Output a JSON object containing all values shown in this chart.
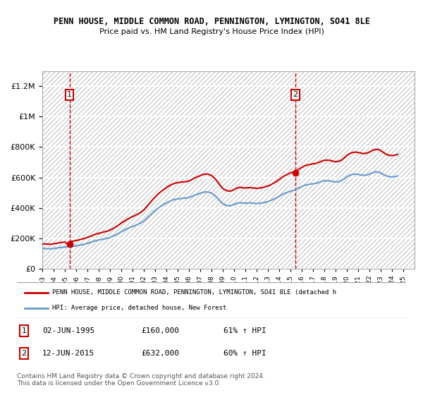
{
  "title": "PENN HOUSE, MIDDLE COMMON ROAD, PENNINGTON, LYMINGTON, SO41 8LE",
  "subtitle": "Price paid vs. HM Land Registry's House Price Index (HPI)",
  "xlabel": "",
  "ylabel": "",
  "ylim": [
    0,
    1300000
  ],
  "xlim_start": 1993,
  "xlim_end": 2026,
  "yticks": [
    0,
    200000,
    400000,
    600000,
    800000,
    1000000,
    1200000
  ],
  "ytick_labels": [
    "£0",
    "£200K",
    "£400K",
    "£600K",
    "£800K",
    "£1M",
    "£1.2M"
  ],
  "xticks": [
    1993,
    1994,
    1995,
    1996,
    1997,
    1998,
    1999,
    2000,
    2001,
    2002,
    2003,
    2004,
    2005,
    2006,
    2007,
    2008,
    2009,
    2010,
    2011,
    2012,
    2013,
    2014,
    2015,
    2016,
    2017,
    2018,
    2019,
    2020,
    2021,
    2022,
    2023,
    2024,
    2025
  ],
  "background_color": "#ffffff",
  "plot_bg_color": "#f5f5f5",
  "hatch_color": "#dddddd",
  "grid_color": "#ffffff",
  "red_line_color": "#cc0000",
  "blue_line_color": "#6699cc",
  "sale1_date": 1995.42,
  "sale1_price": 160000,
  "sale2_date": 2015.44,
  "sale2_price": 632000,
  "legend_label_red": "PENN HOUSE, MIDDLE COMMON ROAD, PENNINGTON, LYMINGTON, SO41 8LE (detached h",
  "legend_label_blue": "HPI: Average price, detached house, New Forest",
  "footnote": "Contains HM Land Registry data © Crown copyright and database right 2024.\nThis data is licensed under the Open Government Licence v3.0.",
  "table_row1": "1    02-JUN-1995    £160,000    61% ↑ HPI",
  "table_row2": "2    12-JUN-2015    £632,000    60% ↑ HPI",
  "hpi_data_x": [
    1993.0,
    1993.25,
    1993.5,
    1993.75,
    1994.0,
    1994.25,
    1994.5,
    1994.75,
    1995.0,
    1995.25,
    1995.5,
    1995.75,
    1996.0,
    1996.25,
    1996.5,
    1996.75,
    1997.0,
    1997.25,
    1997.5,
    1997.75,
    1998.0,
    1998.25,
    1998.5,
    1998.75,
    1999.0,
    1999.25,
    1999.5,
    1999.75,
    2000.0,
    2000.25,
    2000.5,
    2000.75,
    2001.0,
    2001.25,
    2001.5,
    2001.75,
    2002.0,
    2002.25,
    2002.5,
    2002.75,
    2003.0,
    2003.25,
    2003.5,
    2003.75,
    2004.0,
    2004.25,
    2004.5,
    2004.75,
    2005.0,
    2005.25,
    2005.5,
    2005.75,
    2006.0,
    2006.25,
    2006.5,
    2006.75,
    2007.0,
    2007.25,
    2007.5,
    2007.75,
    2008.0,
    2008.25,
    2008.5,
    2008.75,
    2009.0,
    2009.25,
    2009.5,
    2009.75,
    2010.0,
    2010.25,
    2010.5,
    2010.75,
    2011.0,
    2011.25,
    2011.5,
    2011.75,
    2012.0,
    2012.25,
    2012.5,
    2012.75,
    2013.0,
    2013.25,
    2013.5,
    2013.75,
    2014.0,
    2014.25,
    2014.5,
    2014.75,
    2015.0,
    2015.25,
    2015.5,
    2015.75,
    2016.0,
    2016.25,
    2016.5,
    2016.75,
    2017.0,
    2017.25,
    2017.5,
    2017.75,
    2018.0,
    2018.25,
    2018.5,
    2018.75,
    2019.0,
    2019.25,
    2019.5,
    2019.75,
    2020.0,
    2020.25,
    2020.5,
    2020.75,
    2021.0,
    2021.25,
    2021.5,
    2021.75,
    2022.0,
    2022.25,
    2022.5,
    2022.75,
    2023.0,
    2023.25,
    2023.5,
    2023.75,
    2024.0,
    2024.25,
    2024.5
  ],
  "hpi_data_y": [
    130000,
    132000,
    131000,
    130000,
    132000,
    135000,
    138000,
    140000,
    142000,
    143000,
    145000,
    147000,
    150000,
    153000,
    157000,
    161000,
    166000,
    172000,
    178000,
    184000,
    188000,
    192000,
    196000,
    199000,
    205000,
    213000,
    222000,
    232000,
    242000,
    252000,
    262000,
    270000,
    277000,
    284000,
    292000,
    301000,
    313000,
    330000,
    348000,
    366000,
    382000,
    397000,
    410000,
    421000,
    432000,
    442000,
    450000,
    455000,
    459000,
    461000,
    463000,
    464000,
    468000,
    475000,
    483000,
    490000,
    496000,
    502000,
    505000,
    503000,
    497000,
    484000,
    466000,
    445000,
    428000,
    418000,
    413000,
    415000,
    422000,
    430000,
    434000,
    432000,
    430000,
    432000,
    432000,
    430000,
    428000,
    430000,
    432000,
    436000,
    441000,
    448000,
    456000,
    465000,
    476000,
    487000,
    496000,
    503000,
    508000,
    514000,
    522000,
    531000,
    540000,
    548000,
    553000,
    556000,
    558000,
    561000,
    567000,
    573000,
    578000,
    579000,
    577000,
    573000,
    570000,
    572000,
    578000,
    590000,
    604000,
    614000,
    620000,
    622000,
    620000,
    616000,
    614000,
    616000,
    622000,
    630000,
    636000,
    636000,
    630000,
    619000,
    610000,
    605000,
    603000,
    605000,
    610000
  ],
  "price_data_x": [
    1993.0,
    1993.25,
    1993.5,
    1993.75,
    1994.0,
    1994.25,
    1994.5,
    1994.75,
    1995.0,
    1995.25,
    1995.5,
    1995.75,
    1996.0,
    1996.25,
    1996.5,
    1996.75,
    1997.0,
    1997.25,
    1997.5,
    1997.75,
    1998.0,
    1998.25,
    1998.5,
    1998.75,
    1999.0,
    1999.25,
    1999.5,
    1999.75,
    2000.0,
    2000.25,
    2000.5,
    2000.75,
    2001.0,
    2001.25,
    2001.5,
    2001.75,
    2002.0,
    2002.25,
    2002.5,
    2002.75,
    2003.0,
    2003.25,
    2003.5,
    2003.75,
    2004.0,
    2004.25,
    2004.5,
    2004.75,
    2005.0,
    2005.25,
    2005.5,
    2005.75,
    2006.0,
    2006.25,
    2006.5,
    2006.75,
    2007.0,
    2007.25,
    2007.5,
    2007.75,
    2008.0,
    2008.25,
    2008.5,
    2008.75,
    2009.0,
    2009.25,
    2009.5,
    2009.75,
    2010.0,
    2010.25,
    2010.5,
    2010.75,
    2011.0,
    2011.25,
    2011.5,
    2011.75,
    2012.0,
    2012.25,
    2012.5,
    2012.75,
    2013.0,
    2013.25,
    2013.5,
    2013.75,
    2014.0,
    2014.25,
    2014.5,
    2014.75,
    2015.0,
    2015.25,
    2015.5,
    2015.75,
    2016.0,
    2016.25,
    2016.5,
    2016.75,
    2017.0,
    2017.25,
    2017.5,
    2017.75,
    2018.0,
    2018.25,
    2018.5,
    2018.75,
    2019.0,
    2019.25,
    2019.5,
    2019.75,
    2020.0,
    2020.25,
    2020.5,
    2020.75,
    2021.0,
    2021.25,
    2021.5,
    2021.75,
    2022.0,
    2022.25,
    2022.5,
    2022.75,
    2023.0,
    2023.25,
    2023.5,
    2023.75,
    2024.0,
    2024.25,
    2024.5
  ],
  "price_data_y": [
    160000,
    163000,
    161000,
    160000,
    163000,
    167000,
    170000,
    173000,
    175000,
    160000,
    179000,
    181000,
    185000,
    189000,
    194000,
    199000,
    205000,
    212000,
    220000,
    227000,
    232000,
    237000,
    242000,
    246000,
    253000,
    263000,
    274000,
    286000,
    299000,
    311000,
    323000,
    333000,
    342000,
    351000,
    360000,
    371000,
    386000,
    407000,
    429000,
    451000,
    471000,
    490000,
    506000,
    519000,
    533000,
    545000,
    555000,
    561000,
    566000,
    568000,
    571000,
    572000,
    577000,
    586000,
    596000,
    604000,
    612000,
    619000,
    623000,
    620000,
    612000,
    597000,
    575000,
    549000,
    528000,
    516000,
    510000,
    512000,
    520000,
    530000,
    535000,
    533000,
    530000,
    533000,
    533000,
    530000,
    528000,
    530000,
    533000,
    538000,
    544000,
    552000,
    562000,
    573000,
    587000,
    601000,
    612000,
    620000,
    632000,
    634000,
    643000,
    655000,
    666000,
    676000,
    682000,
    686000,
    690000,
    692000,
    699000,
    707000,
    713000,
    714000,
    712000,
    707000,
    703000,
    706000,
    713000,
    728000,
    745000,
    757000,
    764000,
    767000,
    764000,
    760000,
    757000,
    760000,
    767000,
    777000,
    784000,
    785000,
    777000,
    764000,
    752000,
    746000,
    744000,
    746000,
    752000
  ],
  "vline1_x": 1995.42,
  "vline2_x": 2015.44,
  "vline_color": "#cc0000",
  "marker_color": "#cc0000"
}
